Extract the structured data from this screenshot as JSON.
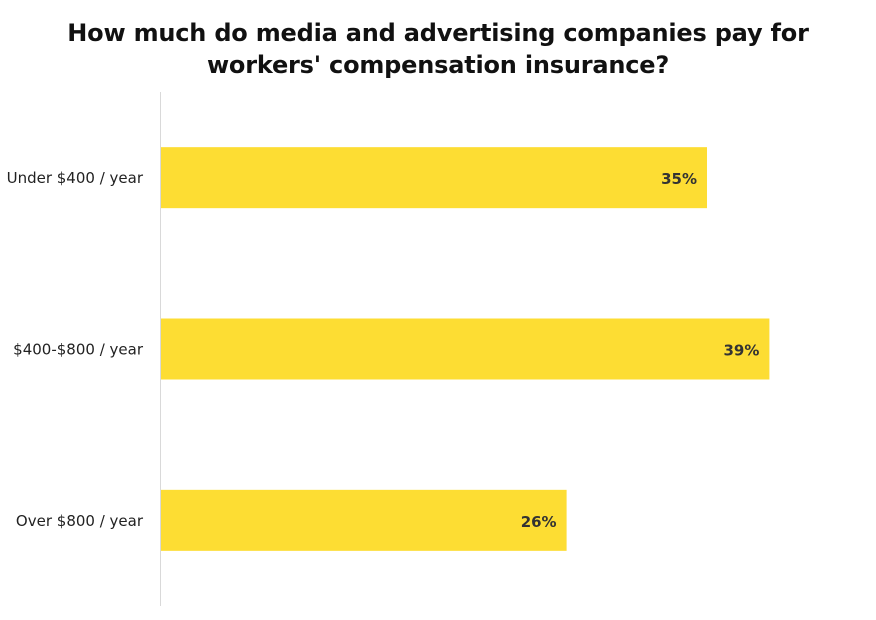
{
  "chart_data": {
    "type": "bar",
    "orientation": "horizontal",
    "title_lines": [
      "How much do media and advertising companies pay for",
      "workers' compensation insurance?"
    ],
    "categories": [
      "Under $400 / year",
      "$400-$800 / year",
      "Over $800 / year"
    ],
    "values": [
      35,
      39,
      26
    ],
    "value_labels": [
      "35%",
      "39%",
      "26%"
    ],
    "xlim": [
      0,
      50
    ],
    "grid": false,
    "legend": "none",
    "bar_color": "#FDDD33",
    "axis_color": "#d9d9d9"
  }
}
